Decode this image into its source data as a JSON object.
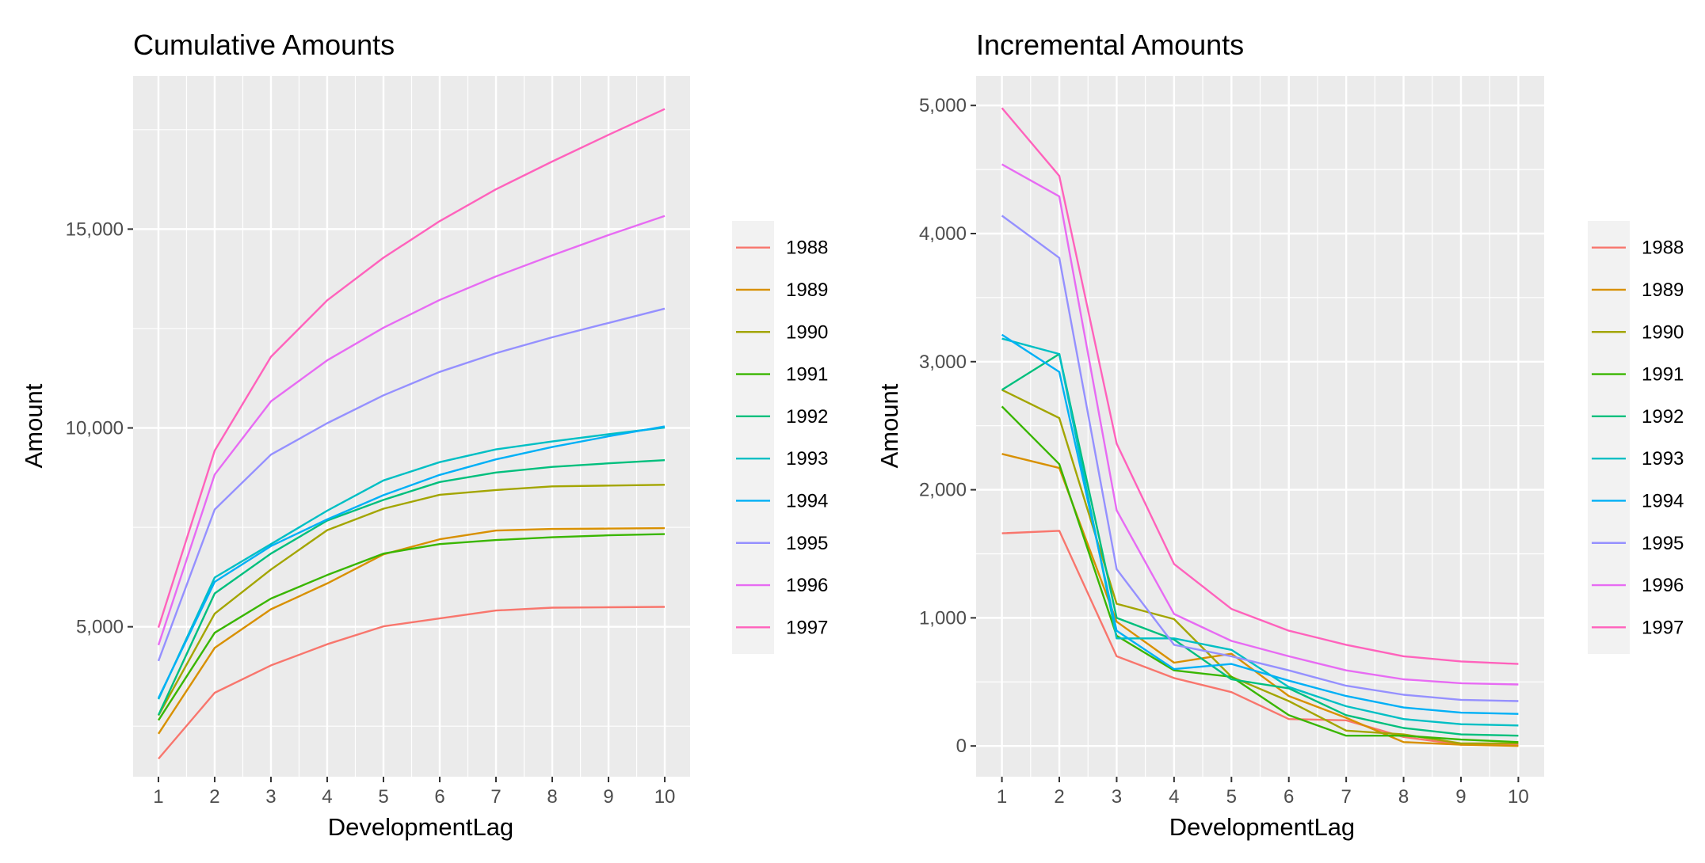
{
  "chart_data": [
    {
      "type": "line",
      "title": "Cumulative Amounts",
      "xlabel": "DevelopmentLag",
      "ylabel": "Amount",
      "x": [
        1,
        2,
        3,
        4,
        5,
        6,
        7,
        8,
        9,
        10
      ],
      "xlim": [
        0.55,
        10.45
      ],
      "ylim": [
        1230,
        18850
      ],
      "yticks": [
        5000,
        10000,
        15000
      ],
      "ytick_labels": [
        "5,000",
        "10,000",
        "15,000"
      ],
      "grid": true,
      "legend": "right",
      "series": [
        {
          "name": "1988",
          "color": "#F8766D",
          "values": [
            1680,
            3340,
            4030,
            4560,
            5010,
            5210,
            5410,
            5480,
            5490,
            5500
          ]
        },
        {
          "name": "1989",
          "color": "#D89000",
          "values": [
            2310,
            4470,
            5440,
            6090,
            6820,
            7200,
            7420,
            7460,
            7470,
            7480
          ]
        },
        {
          "name": "1990",
          "color": "#A3A500",
          "values": [
            2770,
            5330,
            6440,
            7430,
            7970,
            8320,
            8440,
            8530,
            8550,
            8570
          ]
        },
        {
          "name": "1991",
          "color": "#39B600",
          "values": [
            2650,
            4850,
            5710,
            6300,
            6840,
            7080,
            7180,
            7250,
            7300,
            7330
          ]
        },
        {
          "name": "1992",
          "color": "#00BF7D",
          "values": [
            2780,
            5840,
            6840,
            7670,
            8190,
            8640,
            8880,
            9020,
            9110,
            9190
          ]
        },
        {
          "name": "1993",
          "color": "#00BFC4",
          "values": [
            3180,
            6240,
            7080,
            7920,
            8680,
            9140,
            9460,
            9660,
            9840,
            10010
          ]
        },
        {
          "name": "1994",
          "color": "#00B0F6",
          "values": [
            3210,
            6130,
            7030,
            7700,
            8310,
            8820,
            9210,
            9520,
            9790,
            10040
          ]
        },
        {
          "name": "1995",
          "color": "#9590FF",
          "values": [
            4140,
            7950,
            9330,
            10120,
            10820,
            11410,
            11880,
            12280,
            12640,
            13000
          ]
        },
        {
          "name": "1996",
          "color": "#E76BF3",
          "values": [
            4540,
            8830,
            10670,
            11700,
            12520,
            13220,
            13810,
            14340,
            14850,
            15330
          ]
        },
        {
          "name": "1997",
          "color": "#FF62BC",
          "values": [
            4980,
            9430,
            11790,
            13210,
            14280,
            15200,
            16000,
            16700,
            17370,
            18020
          ]
        }
      ]
    },
    {
      "type": "line",
      "title": "Incremental Amounts",
      "xlabel": "DevelopmentLag",
      "ylabel": "Amount",
      "x": [
        1,
        2,
        3,
        4,
        5,
        6,
        7,
        8,
        9,
        10
      ],
      "xlim": [
        0.55,
        10.45
      ],
      "ylim": [
        -240,
        5230
      ],
      "yticks": [
        0,
        1000,
        2000,
        3000,
        4000,
        5000
      ],
      "ytick_labels": [
        "0",
        "1,000",
        "2,000",
        "3,000",
        "4,000",
        "5,000"
      ],
      "grid": true,
      "legend": "right",
      "series": [
        {
          "name": "1988",
          "color": "#F8766D",
          "values": [
            1660,
            1680,
            700,
            530,
            420,
            210,
            200,
            70,
            10,
            10
          ]
        },
        {
          "name": "1989",
          "color": "#D89000",
          "values": [
            2280,
            2170,
            970,
            650,
            720,
            390,
            220,
            30,
            10,
            0
          ]
        },
        {
          "name": "1990",
          "color": "#A3A500",
          "values": [
            2780,
            2560,
            1110,
            990,
            540,
            350,
            120,
            90,
            20,
            20
          ]
        },
        {
          "name": "1991",
          "color": "#39B600",
          "values": [
            2650,
            2200,
            860,
            590,
            540,
            240,
            80,
            80,
            50,
            30
          ]
        },
        {
          "name": "1992",
          "color": "#00BF7D",
          "values": [
            2780,
            3060,
            1000,
            830,
            520,
            450,
            240,
            140,
            90,
            80
          ]
        },
        {
          "name": "1993",
          "color": "#00BFC4",
          "values": [
            3180,
            3060,
            840,
            840,
            750,
            460,
            310,
            210,
            170,
            160
          ]
        },
        {
          "name": "1994",
          "color": "#00B0F6",
          "values": [
            3210,
            2920,
            900,
            600,
            640,
            510,
            390,
            300,
            260,
            250
          ]
        },
        {
          "name": "1995",
          "color": "#9590FF",
          "values": [
            4140,
            3810,
            1380,
            790,
            700,
            590,
            470,
            400,
            360,
            350
          ]
        },
        {
          "name": "1996",
          "color": "#E76BF3",
          "values": [
            4540,
            4290,
            1840,
            1030,
            820,
            700,
            590,
            520,
            490,
            480
          ]
        },
        {
          "name": "1997",
          "color": "#FF62BC",
          "values": [
            4980,
            4450,
            2360,
            1420,
            1070,
            900,
            790,
            700,
            660,
            640
          ]
        }
      ]
    }
  ]
}
